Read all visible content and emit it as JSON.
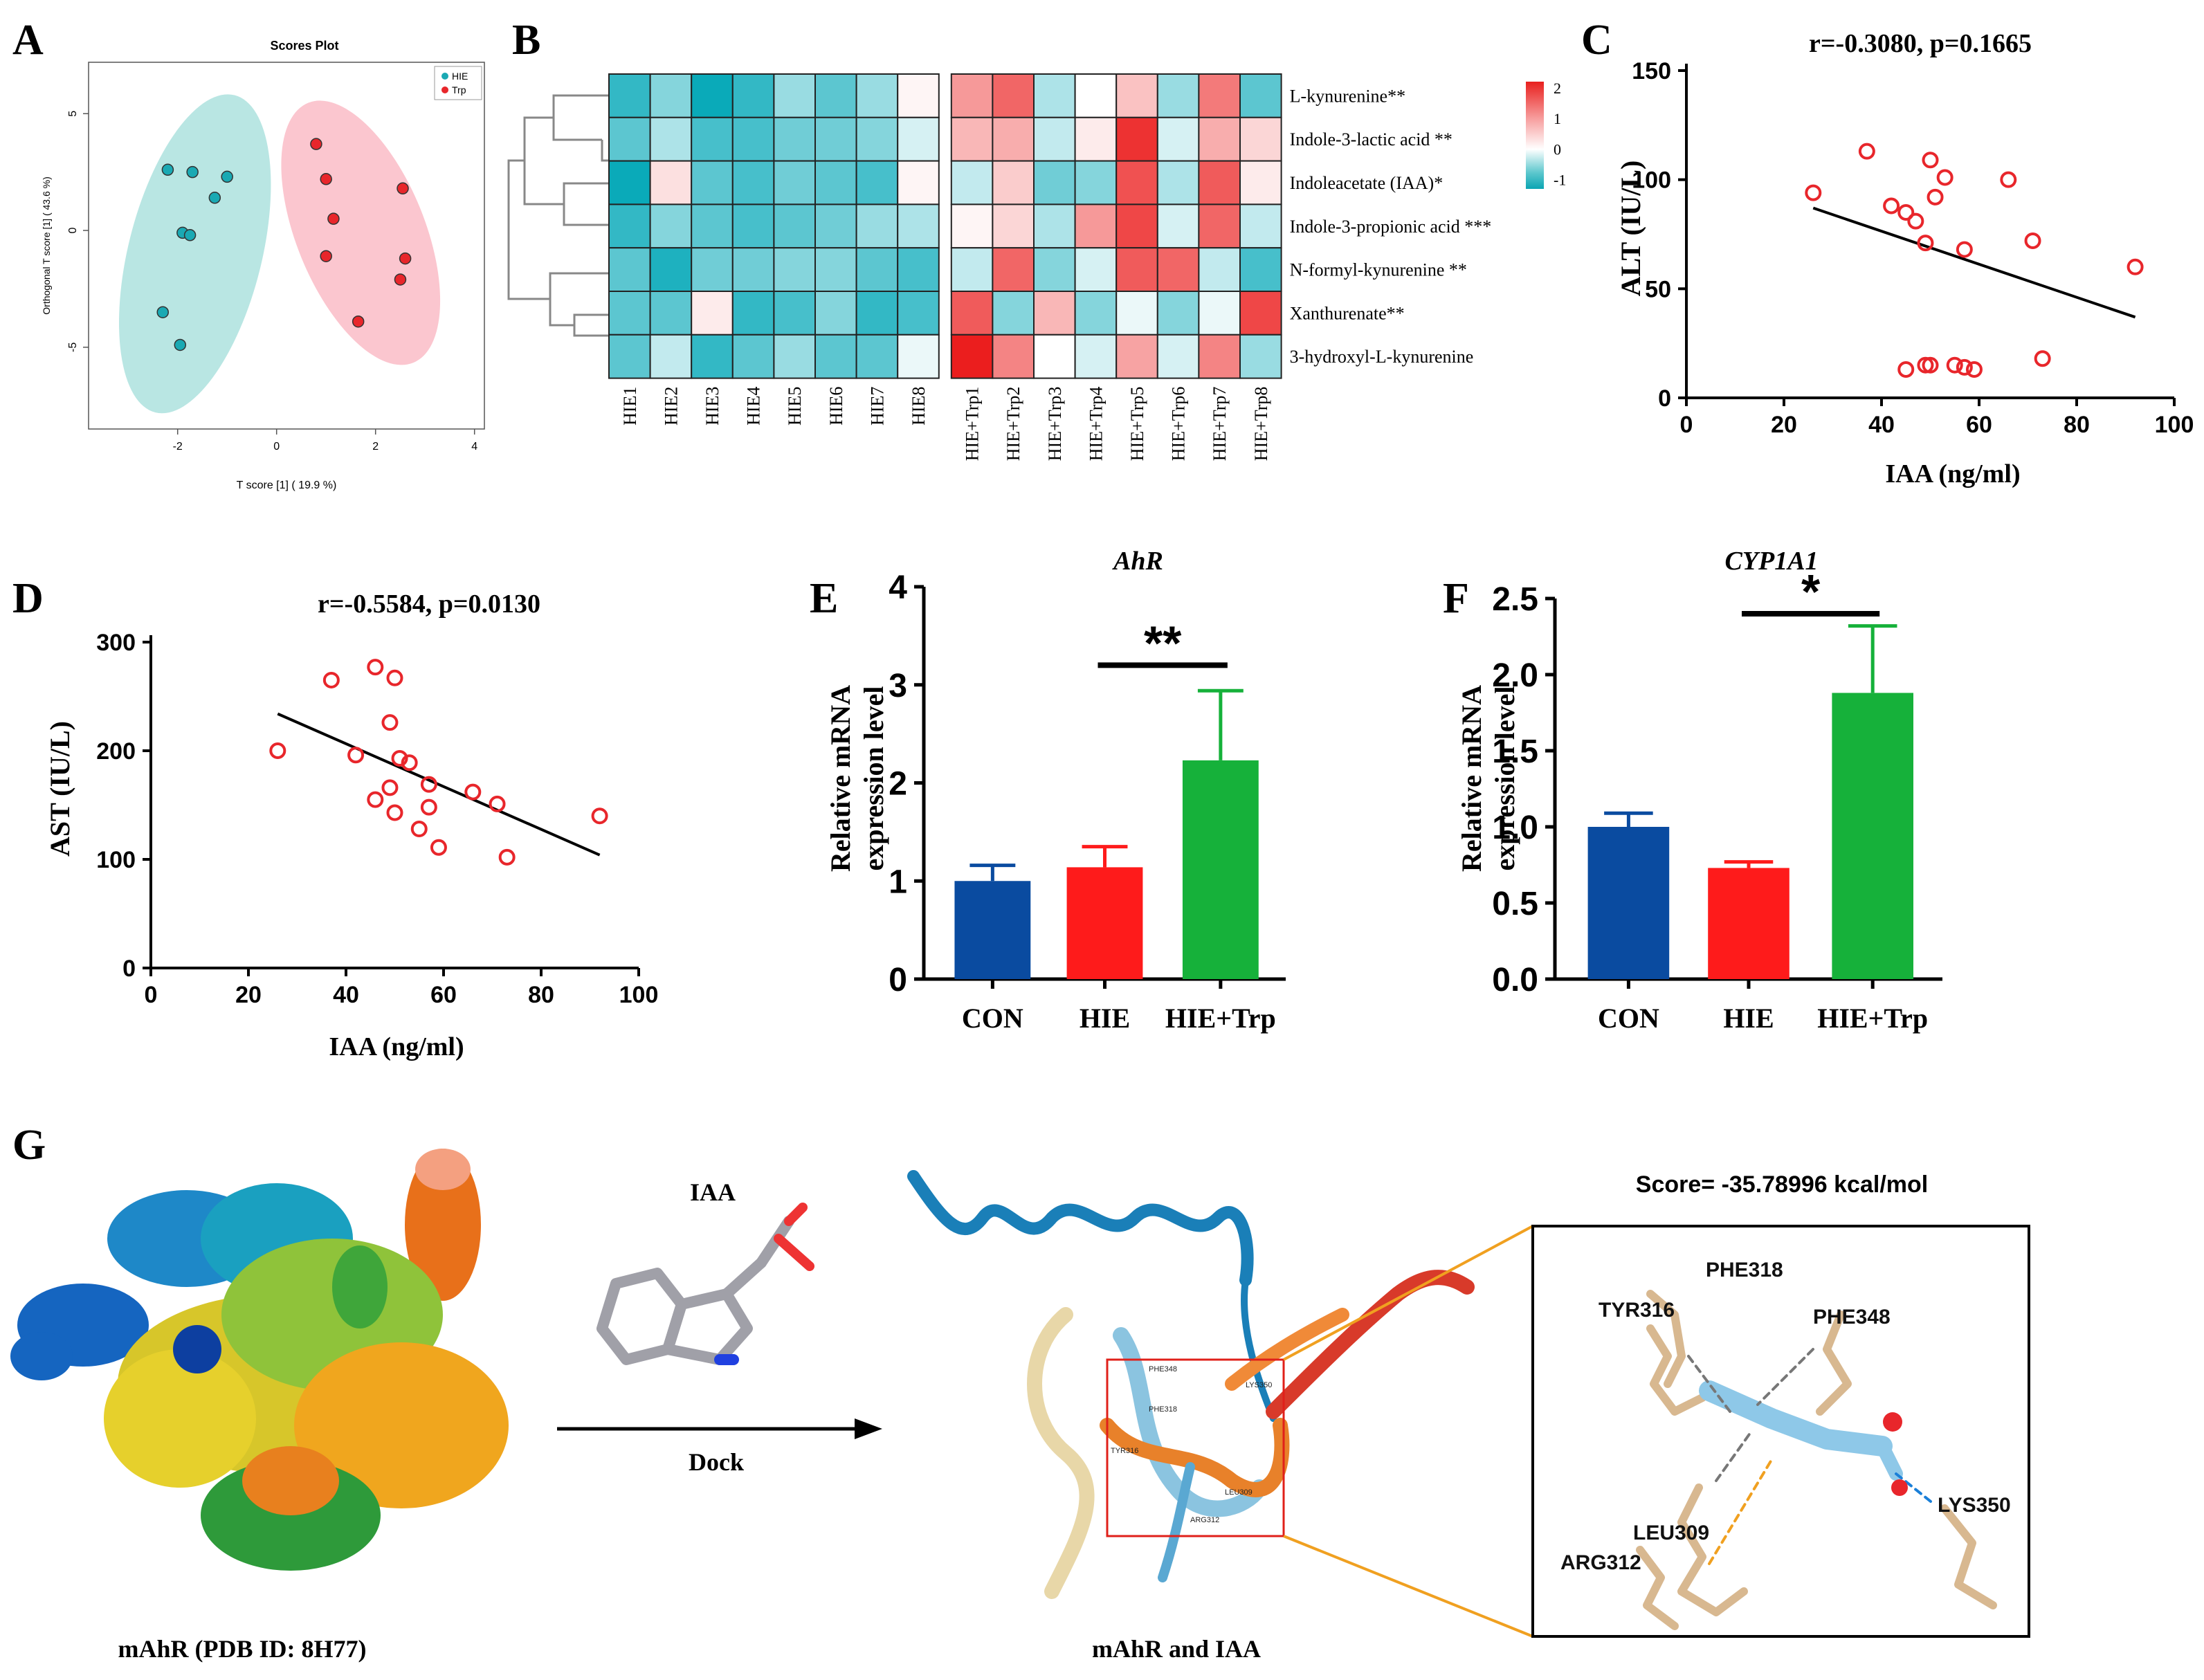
{
  "panels": {
    "A": {
      "label": "A",
      "title": "Scores Plot",
      "xlabel": "T score [1] ( 19.9 %)",
      "ylabel": "Orthogonal T score [1] ( 43.6 %)"
    },
    "B": {
      "label": "B"
    },
    "C": {
      "label": "C",
      "title": "r=-0.3080, p=0.1665"
    },
    "D": {
      "label": "D",
      "title": "r=-0.5584, p=0.0130"
    },
    "E": {
      "label": "E",
      "title": "AhR",
      "sig": "**"
    },
    "F": {
      "label": "F",
      "title": "CYP1A1",
      "sig": "*"
    },
    "G": {
      "label": "G",
      "protein_caption": "mAhR (PDB ID: 8H77)",
      "ligand_label": "IAA",
      "arrow_label": "Dock",
      "complex_caption": "mAhR  and  IAA",
      "score": "Score= -35.78996 kcal/mol",
      "inset_residues": [
        "PHE318",
        "TYR316",
        "PHE348",
        "LEU309",
        "ARG312",
        "LYS350"
      ],
      "site_residues": [
        "PHE348",
        "LYS350",
        "PHE318",
        "TYR316",
        "LEU309",
        "ARG312"
      ]
    }
  },
  "colors": {
    "teal": "#1aa9b3",
    "red": "#e8262b",
    "con": "#0a4ba0",
    "hie": "#fe1b1b",
    "hietrp": "#16b13a",
    "teal_ellipse": "#b9e6e3",
    "red_ellipse": "#fbc6cf"
  },
  "chart_data": [
    {
      "id": "A",
      "type": "scatter",
      "title": "Scores Plot",
      "xlabel": "T score [1] ( 19.9 %)",
      "ylabel": "Orthogonal T score [1] ( 43.6 %)",
      "xlim": [
        -3.8,
        4.2
      ],
      "ylim": [
        -8.5,
        7.2
      ],
      "xticks": [
        -2,
        0,
        2,
        4
      ],
      "yticks": [
        -5,
        0,
        5
      ],
      "legend": {
        "position": "top-right",
        "entries": [
          "HIE",
          "Trp"
        ]
      },
      "series": [
        {
          "name": "HIE",
          "x": [
            -2.2,
            -1.7,
            -1.0,
            -1.25,
            -1.9,
            -1.75,
            -2.3,
            -1.95
          ],
          "y": [
            2.6,
            2.5,
            2.3,
            1.4,
            -0.1,
            -0.2,
            -3.5,
            -4.9
          ]
        },
        {
          "name": "Trp",
          "x": [
            0.8,
            1.0,
            1.15,
            2.55,
            1.0,
            2.6,
            2.5,
            1.65
          ],
          "y": [
            3.7,
            2.2,
            0.5,
            1.8,
            -1.1,
            -1.2,
            -2.1,
            -3.9
          ]
        }
      ]
    },
    {
      "id": "B",
      "type": "heatmap",
      "columns": [
        "HIE1",
        "HIE2",
        "HIE3",
        "HIE4",
        "HIE5",
        "HIE6",
        "HIE7",
        "HIE8",
        "HIE+Trp1",
        "HIE+Trp2",
        "HIE+Trp3",
        "HIE+Trp4",
        "HIE+Trp5",
        "HIE+Trp6",
        "HIE+Trp7",
        "HIE+Trp8"
      ],
      "rows": [
        "L-kynurenine**",
        "Indole-3-lactic acid **",
        "Indoleacetate (IAA)*",
        "Indole-3-propionic acid ***",
        "N-formyl-kynurenine **",
        "Xanthurenate**",
        "3-hydroxyl-L-kynurenine"
      ],
      "scale": {
        "min": -1.3,
        "max": 2.2,
        "ticks": [
          2,
          1,
          0,
          -1
        ]
      },
      "values": [
        [
          -1.0,
          -0.6,
          -1.2,
          -1.0,
          -0.5,
          -0.8,
          -0.5,
          0.1,
          1.0,
          1.5,
          -0.4,
          0.0,
          0.6,
          -0.5,
          1.3,
          -0.8
        ],
        [
          -0.8,
          -0.4,
          -0.9,
          -0.9,
          -0.7,
          -0.7,
          -0.6,
          -0.2,
          0.7,
          0.8,
          -0.3,
          0.2,
          2.0,
          -0.2,
          0.8,
          0.4
        ],
        [
          -1.2,
          0.3,
          -0.8,
          -0.9,
          -0.7,
          -0.8,
          -0.9,
          0.1,
          -0.3,
          0.5,
          -0.7,
          -0.6,
          1.7,
          -0.4,
          1.6,
          0.2
        ],
        [
          -1.0,
          -0.6,
          -0.8,
          -0.9,
          -0.8,
          -0.7,
          -0.5,
          -0.4,
          0.1,
          0.4,
          -0.4,
          1.0,
          1.8,
          -0.2,
          1.5,
          -0.3
        ],
        [
          -0.8,
          -1.1,
          -0.7,
          -0.7,
          -0.6,
          -0.6,
          -0.8,
          -0.9,
          -0.3,
          1.5,
          -0.6,
          -0.2,
          1.6,
          1.5,
          -0.3,
          -0.9
        ],
        [
          -0.8,
          -0.8,
          0.2,
          -1.0,
          -0.9,
          -0.6,
          -1.0,
          -0.9,
          1.6,
          -0.6,
          0.7,
          -0.6,
          -0.1,
          -0.6,
          -0.1,
          1.8
        ],
        [
          -0.8,
          -0.3,
          -1.0,
          -0.8,
          -0.5,
          -0.8,
          -0.8,
          -0.1,
          2.2,
          1.2,
          0.0,
          -0.2,
          0.9,
          -0.2,
          1.2,
          -0.5
        ]
      ]
    },
    {
      "id": "C",
      "type": "scatter",
      "title": "r=-0.3080, p=0.1665",
      "xlabel": "IAA (ng/ml)",
      "ylabel": "ALT (IU/L)",
      "xlim": [
        0,
        100
      ],
      "ylim": [
        0,
        150
      ],
      "xticks": [
        0,
        20,
        40,
        60,
        80,
        100
      ],
      "yticks": [
        0,
        50,
        100,
        150
      ],
      "series": [
        {
          "x": [
            26,
            37,
            42,
            45,
            47,
            50,
            49,
            51,
            53,
            57,
            66,
            71,
            92,
            49,
            45,
            50,
            55,
            57,
            59,
            73
          ],
          "y": [
            94,
            113,
            88,
            85,
            81,
            109,
            71,
            92,
            101,
            68,
            100,
            72,
            60,
            15,
            13,
            15,
            15,
            14,
            13,
            18
          ]
        }
      ],
      "regression": {
        "x": [
          26,
          92
        ],
        "y": [
          87,
          37
        ]
      }
    },
    {
      "id": "D",
      "type": "scatter",
      "title": "r=-0.5584, p=0.0130",
      "xlabel": "IAA (ng/ml)",
      "ylabel": "AST (IU/L)",
      "xlim": [
        0,
        100
      ],
      "ylim": [
        0,
        300
      ],
      "xticks": [
        0,
        20,
        40,
        60,
        80,
        100
      ],
      "yticks": [
        0,
        100,
        200,
        300
      ],
      "series": [
        {
          "x": [
            26,
            37,
            42,
            46,
            50,
            49,
            51,
            53,
            57,
            66,
            71,
            92,
            46,
            49,
            50,
            55,
            57,
            59,
            73
          ],
          "y": [
            200,
            265,
            196,
            277,
            267,
            226,
            193,
            189,
            169,
            162,
            151,
            140,
            155,
            166,
            143,
            128,
            148,
            111,
            102
          ]
        }
      ],
      "regression": {
        "x": [
          26,
          92
        ],
        "y": [
          234,
          104
        ]
      }
    },
    {
      "id": "E",
      "type": "bar",
      "title": "AhR",
      "ylabel": "Relative mRNA expression level",
      "categories": [
        "CON",
        "HIE",
        "HIE+Trp"
      ],
      "values": [
        1.0,
        1.14,
        2.23
      ],
      "errors": [
        0.16,
        0.21,
        0.71
      ],
      "ylim": [
        0,
        4
      ],
      "yticks": [
        0,
        1,
        2,
        3,
        4
      ],
      "significance": "**"
    },
    {
      "id": "F",
      "type": "bar",
      "title": "CYP1A1",
      "ylabel": "Relative mRNA expression level",
      "categories": [
        "CON",
        "HIE",
        "HIE+Trp"
      ],
      "values": [
        1.0,
        0.73,
        1.88
      ],
      "errors": [
        0.09,
        0.04,
        0.44
      ],
      "ylim": [
        0,
        2.5
      ],
      "yticks": [
        0.0,
        0.5,
        1.0,
        1.5,
        2.0,
        2.5
      ],
      "significance": "*"
    }
  ]
}
